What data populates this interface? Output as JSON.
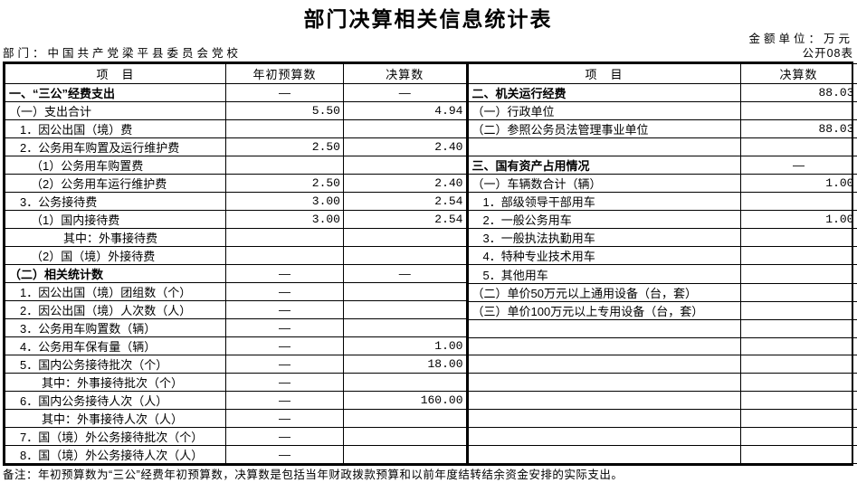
{
  "title": "部门决算相关信息统计表",
  "meta": {
    "unit_label": "金额单位：万元",
    "department_label": "部门：中国共产党梁平县委员会党校",
    "form_code": "公开08表"
  },
  "left_table": {
    "headers": [
      "项　目",
      "年初预算数",
      "决算数"
    ],
    "rows": [
      {
        "item": "一、“三公”经费支出",
        "indent": 0,
        "bold": true,
        "budget": "—",
        "final": "—"
      },
      {
        "item": "（一）支出合计",
        "indent": 0,
        "bold": false,
        "budget": "5.50",
        "final": "4.94"
      },
      {
        "item": "1．因公出国（境）费",
        "indent": 1,
        "bold": false,
        "budget": "",
        "final": ""
      },
      {
        "item": "2．公务用车购置及运行维护费",
        "indent": 1,
        "bold": false,
        "budget": "2.50",
        "final": "2.40"
      },
      {
        "item": "（1）公务用车购置费",
        "indent": 2,
        "bold": false,
        "budget": "",
        "final": ""
      },
      {
        "item": "（2）公务用车运行维护费",
        "indent": 2,
        "bold": false,
        "budget": "2.50",
        "final": "2.40"
      },
      {
        "item": "3．公务接待费",
        "indent": 1,
        "bold": false,
        "budget": "3.00",
        "final": "2.54"
      },
      {
        "item": "（1）国内接待费",
        "indent": 2,
        "bold": false,
        "budget": "3.00",
        "final": "2.54"
      },
      {
        "item": "其中：外事接待费",
        "indent": 5,
        "bold": false,
        "budget": "",
        "final": ""
      },
      {
        "item": "（2）国（境）外接待费",
        "indent": 2,
        "bold": false,
        "budget": "",
        "final": ""
      },
      {
        "item": "（二）相关统计数",
        "indent": 0,
        "bold": true,
        "budget": "—",
        "final": "—"
      },
      {
        "item": "1．因公出国（境）团组数（个）",
        "indent": 1,
        "bold": false,
        "budget": "—",
        "final": ""
      },
      {
        "item": "2．因公出国（境）人次数（人）",
        "indent": 1,
        "bold": false,
        "budget": "—",
        "final": ""
      },
      {
        "item": "3．公务用车购置数（辆）",
        "indent": 1,
        "bold": false,
        "budget": "—",
        "final": ""
      },
      {
        "item": "4．公务用车保有量（辆）",
        "indent": 1,
        "bold": false,
        "budget": "—",
        "final": "1.00"
      },
      {
        "item": "5．国内公务接待批次（个）",
        "indent": 1,
        "bold": false,
        "budget": "—",
        "final": "18.00"
      },
      {
        "item": "其中：外事接待批次（个）",
        "indent": 3,
        "bold": false,
        "budget": "—",
        "final": ""
      },
      {
        "item": "6．国内公务接待人次（人）",
        "indent": 1,
        "bold": false,
        "budget": "—",
        "final": "160.00"
      },
      {
        "item": "其中：外事接待人次（人）",
        "indent": 3,
        "bold": false,
        "budget": "—",
        "final": ""
      },
      {
        "item": "7．国（境）外公务接待批次（个）",
        "indent": 1,
        "bold": false,
        "budget": "—",
        "final": ""
      },
      {
        "item": "8．国（境）外公务接待人次（人）",
        "indent": 1,
        "bold": false,
        "budget": "—",
        "final": ""
      }
    ]
  },
  "right_table": {
    "headers": [
      "项　目",
      "决算数"
    ],
    "rows": [
      {
        "item": "二、机关运行经费",
        "indent": 0,
        "bold": true,
        "final": "88.03"
      },
      {
        "item": "（一）行政单位",
        "indent": 0,
        "bold": false,
        "final": ""
      },
      {
        "item": "（二）参照公务员法管理事业单位",
        "indent": 0,
        "bold": false,
        "final": "88.03"
      },
      {
        "item": "",
        "indent": 0,
        "bold": false,
        "final": ""
      },
      {
        "item": "三、国有资产占用情况",
        "indent": 0,
        "bold": true,
        "final": "—"
      },
      {
        "item": "（一）车辆数合计（辆）",
        "indent": 0,
        "bold": false,
        "final": "1.00"
      },
      {
        "item": "1．部级领导干部用车",
        "indent": 1,
        "bold": false,
        "final": ""
      },
      {
        "item": "2．一般公务用车",
        "indent": 1,
        "bold": false,
        "final": "1.00"
      },
      {
        "item": "3．一般执法执勤用车",
        "indent": 1,
        "bold": false,
        "final": ""
      },
      {
        "item": "4．特种专业技术用车",
        "indent": 1,
        "bold": false,
        "final": ""
      },
      {
        "item": "5．其他用车",
        "indent": 1,
        "bold": false,
        "final": ""
      },
      {
        "item": "（二）单价50万元以上通用设备（台，套）",
        "indent": 0,
        "bold": false,
        "final": ""
      },
      {
        "item": "（三）单价100万元以上专用设备（台，套）",
        "indent": 0,
        "bold": false,
        "final": ""
      },
      {
        "item": "",
        "indent": 0,
        "bold": false,
        "final": ""
      },
      {
        "item": "",
        "indent": 0,
        "bold": false,
        "final": ""
      },
      {
        "item": "",
        "indent": 0,
        "bold": false,
        "final": ""
      },
      {
        "item": "",
        "indent": 0,
        "bold": false,
        "final": ""
      },
      {
        "item": "",
        "indent": 0,
        "bold": false,
        "final": ""
      },
      {
        "item": "",
        "indent": 0,
        "bold": false,
        "final": ""
      },
      {
        "item": "",
        "indent": 0,
        "bold": false,
        "final": ""
      },
      {
        "item": "",
        "indent": 0,
        "bold": false,
        "final": ""
      }
    ]
  },
  "footnote": "备注：年初预算数为“三公”经费年初预算数，决算数是包括当年财政拨款预算和以前年度结转结余资金安排的实际支出。"
}
